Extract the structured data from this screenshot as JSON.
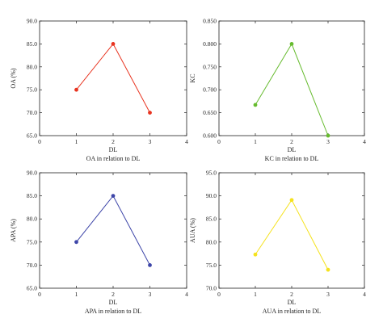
{
  "chart_data": [
    {
      "type": "line",
      "x": [
        1,
        2,
        3
      ],
      "values": [
        75.0,
        85.0,
        70.0
      ],
      "xlim": [
        0,
        4
      ],
      "ylim": [
        65.0,
        90.0
      ],
      "xticks": [
        0,
        1,
        2,
        3,
        4
      ],
      "yticks": [
        "65.0",
        "70.0",
        "75.0",
        "80.0",
        "85.0",
        "90.0"
      ],
      "xlabel": "DL",
      "ylabel": "OA (%)",
      "caption": "OA in relation to DL",
      "color": "#e8331f"
    },
    {
      "type": "line",
      "x": [
        1,
        2,
        3
      ],
      "values": [
        0.667,
        0.8,
        0.6
      ],
      "xlim": [
        0,
        4
      ],
      "ylim": [
        0.6,
        0.85
      ],
      "xticks": [
        0,
        1,
        2,
        3,
        4
      ],
      "yticks": [
        "0.600",
        "0.650",
        "0.700",
        "0.750",
        "0.800",
        "0.850"
      ],
      "xlabel": "DL",
      "ylabel": "KC",
      "caption": "KC in relation to DL",
      "color": "#66bb2e"
    },
    {
      "type": "line",
      "x": [
        1,
        2,
        3
      ],
      "values": [
        75.0,
        85.0,
        70.0
      ],
      "xlim": [
        0,
        4
      ],
      "ylim": [
        65.0,
        90.0
      ],
      "xticks": [
        0,
        1,
        2,
        3,
        4
      ],
      "yticks": [
        "65.0",
        "70.0",
        "75.0",
        "80.0",
        "85.0",
        "90.0"
      ],
      "xlabel": "DL",
      "ylabel": "APA (%)",
      "caption": "APA in relation to DL",
      "color": "#3d45a8"
    },
    {
      "type": "line",
      "x": [
        1,
        2,
        3
      ],
      "values": [
        77.3,
        89.1,
        74.0
      ],
      "xlim": [
        0,
        4
      ],
      "ylim": [
        70.0,
        95.0
      ],
      "xticks": [
        0,
        1,
        2,
        3,
        4
      ],
      "yticks": [
        "70.0",
        "75.0",
        "80.0",
        "85.0",
        "90.0",
        "95.0"
      ],
      "xlabel": "DL",
      "ylabel": "AUA (%)",
      "caption": "AUA in relation to DL",
      "color": "#f5e21e"
    }
  ]
}
